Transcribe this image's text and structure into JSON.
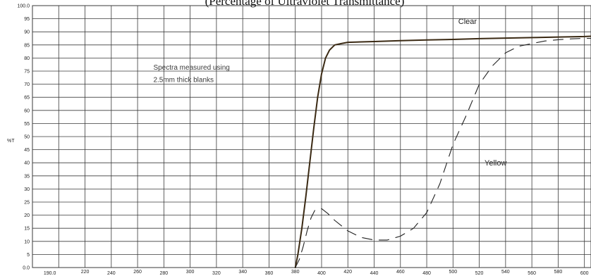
{
  "chart_data": {
    "type": "line",
    "title": "(Percentage of Ultraviolet Transmittance)",
    "ylabel": "%T",
    "xlabel": "",
    "xlim": [
      180,
      605
    ],
    "ylim": [
      0,
      100
    ],
    "grid": true,
    "x_ticks": [
      {
        "value": 190,
        "label": "190.0"
      },
      {
        "value": 220,
        "label": "220"
      },
      {
        "value": 240,
        "label": "240"
      },
      {
        "value": 260,
        "label": "260"
      },
      {
        "value": 280,
        "label": "280"
      },
      {
        "value": 300,
        "label": "300"
      },
      {
        "value": 320,
        "label": "320"
      },
      {
        "value": 340,
        "label": "340"
      },
      {
        "value": 360,
        "label": "360"
      },
      {
        "value": 380,
        "label": "380"
      },
      {
        "value": 400,
        "label": "400"
      },
      {
        "value": 420,
        "label": "420"
      },
      {
        "value": 440,
        "label": "440"
      },
      {
        "value": 460,
        "label": "460"
      },
      {
        "value": 480,
        "label": "480"
      },
      {
        "value": 500,
        "label": "500"
      },
      {
        "value": 520,
        "label": "520"
      },
      {
        "value": 540,
        "label": "540"
      },
      {
        "value": 560,
        "label": "560"
      },
      {
        "value": 580,
        "label": "580"
      },
      {
        "value": 600,
        "label": "600"
      }
    ],
    "y_ticks": [
      {
        "value": 0,
        "label": "0.0"
      },
      {
        "value": 5,
        "label": "5"
      },
      {
        "value": 10,
        "label": "10"
      },
      {
        "value": 15,
        "label": "15"
      },
      {
        "value": 20,
        "label": "20"
      },
      {
        "value": 25,
        "label": "25"
      },
      {
        "value": 30,
        "label": "30"
      },
      {
        "value": 35,
        "label": "35"
      },
      {
        "value": 40,
        "label": "40"
      },
      {
        "value": 45,
        "label": "45"
      },
      {
        "value": 50,
        "label": "50"
      },
      {
        "value": 55,
        "label": "55"
      },
      {
        "value": 60,
        "label": "60"
      },
      {
        "value": 65,
        "label": "65"
      },
      {
        "value": 70,
        "label": "70"
      },
      {
        "value": 75,
        "label": "75"
      },
      {
        "value": 80,
        "label": "80"
      },
      {
        "value": 85,
        "label": "85"
      },
      {
        "value": 90,
        "label": "90"
      },
      {
        "value": 95,
        "label": "95"
      },
      {
        "value": 100,
        "label": "100.0"
      }
    ],
    "annotation": [
      "Spectra measured using",
      "2.5mm thick blanks"
    ],
    "series": [
      {
        "name": "Clear",
        "style": "solid",
        "color": "#3b2a14",
        "x": [
          380,
          382,
          385,
          388,
          391,
          394,
          397,
          400,
          403,
          406,
          410,
          415,
          420,
          440,
          460,
          480,
          500,
          520,
          540,
          560,
          580,
          600,
          605
        ],
        "y": [
          0,
          5,
          15,
          27,
          40,
          53,
          65,
          74,
          80,
          83,
          85,
          85.5,
          86,
          86.3,
          86.6,
          86.9,
          87.1,
          87.4,
          87.6,
          87.8,
          88,
          88.2,
          88.3
        ]
      },
      {
        "name": "Yellow",
        "style": "dashed",
        "color": "#222222",
        "x": [
          380,
          383,
          386,
          389,
          392,
          395,
          400,
          405,
          410,
          420,
          430,
          440,
          450,
          460,
          470,
          480,
          490,
          500,
          510,
          520,
          530,
          540,
          550,
          560,
          570,
          580,
          590,
          600,
          605
        ],
        "y": [
          0,
          3,
          8,
          14,
          19,
          22,
          22.5,
          20.5,
          18,
          14,
          11.5,
          10.5,
          10.5,
          12,
          15,
          21,
          32,
          47,
          58,
          70,
          77,
          82,
          84.5,
          85.5,
          86.5,
          87,
          87.3,
          87.5,
          87.5
        ]
      }
    ],
    "series_labels": [
      {
        "name": "Clear",
        "x": 504,
        "y": 93
      },
      {
        "name": "Yellow",
        "x": 524,
        "y": 39
      }
    ]
  }
}
